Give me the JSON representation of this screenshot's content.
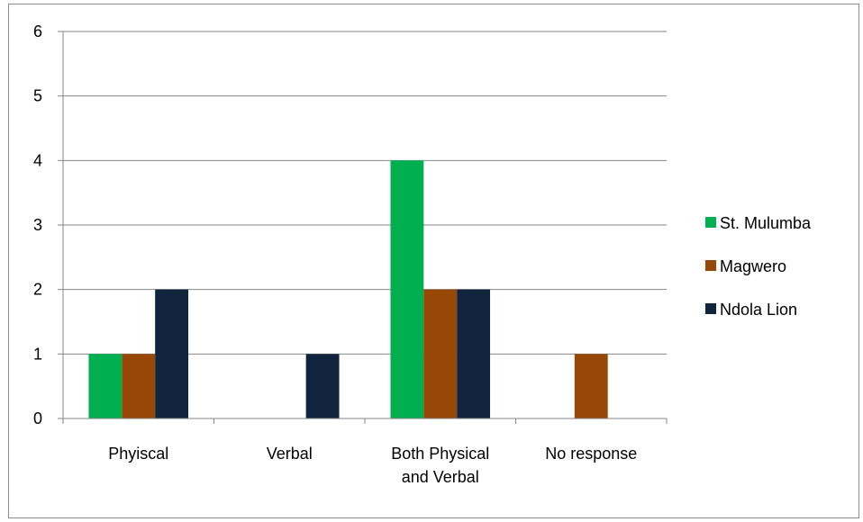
{
  "chart_data": {
    "type": "bar",
    "title": "",
    "xlabel": "",
    "ylabel": "",
    "categories": [
      "Phyiscal",
      "Verbal",
      "Both Physical and Verbal",
      "No response"
    ],
    "category_lines": [
      [
        "Phyiscal"
      ],
      [
        "Verbal"
      ],
      [
        "Both Physical",
        "and Verbal"
      ],
      [
        "No response"
      ]
    ],
    "series": [
      {
        "name": "St. Mulumba",
        "color": "#00b050",
        "values": [
          1,
          0,
          4,
          0
        ]
      },
      {
        "name": "Magwero",
        "color": "#974706",
        "values": [
          1,
          0,
          2,
          1
        ]
      },
      {
        "name": "Ndola Lion",
        "color": "#10243e",
        "values": [
          2,
          1,
          2,
          0
        ]
      }
    ],
    "ylim": [
      0,
      6
    ],
    "yticks": [
      "0",
      "1",
      "2",
      "3",
      "4",
      "5",
      "6"
    ],
    "grid": true,
    "legend": "right",
    "colors": {
      "gridline": "#868686",
      "frame": "#8c8c8c"
    }
  }
}
